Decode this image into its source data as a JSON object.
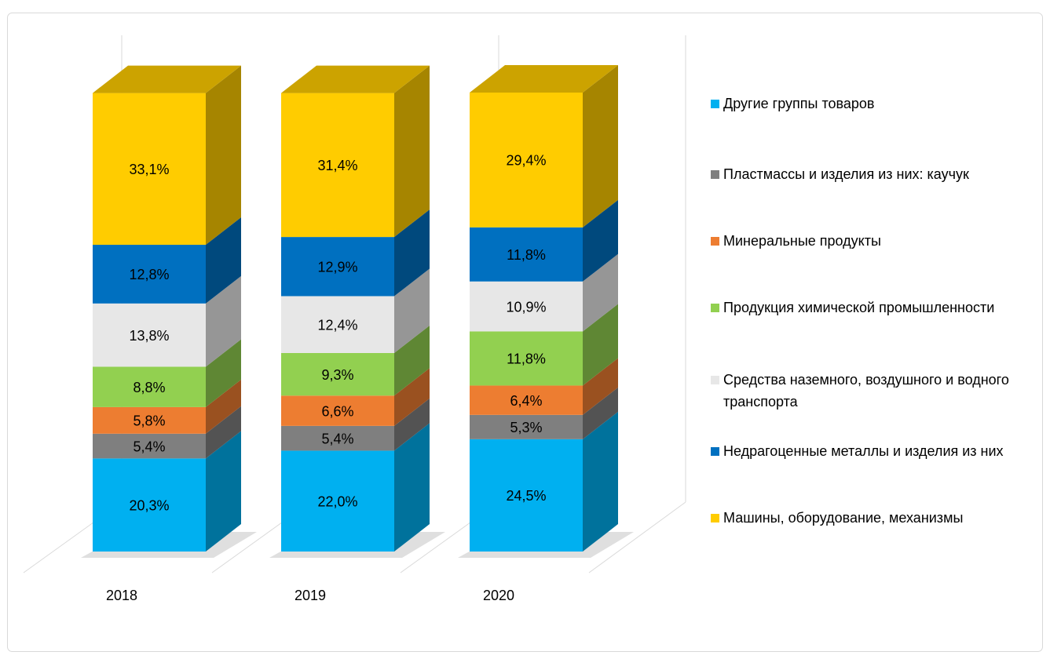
{
  "chart_data": {
    "type": "bar3d_stacked",
    "categories": [
      "2018",
      "2019",
      "2020"
    ],
    "series": [
      {
        "name": "Другие группы товаров",
        "color": "#00b0f0",
        "values": [
          20.3,
          22.0,
          24.5
        ],
        "value_labels": [
          "20,3%",
          "22,0%",
          "24,5%"
        ]
      },
      {
        "name": "Пластмассы и изделия из них: каучук",
        "color": "#7f7f7f",
        "values": [
          5.4,
          5.4,
          5.3
        ],
        "value_labels": [
          "5,4%",
          "5,4%",
          "5,3%"
        ]
      },
      {
        "name": "Минеральные продукты",
        "color": "#ed7d31",
        "values": [
          5.8,
          6.6,
          6.4
        ],
        "value_labels": [
          "5,8%",
          "6,6%",
          "6,4%"
        ]
      },
      {
        "name": "Продукция химической промышленности",
        "color": "#92d050",
        "values": [
          8.8,
          9.3,
          11.8
        ],
        "value_labels": [
          "8,8%",
          "9,3%",
          "11,8%"
        ]
      },
      {
        "name": "Средства наземного, воздушного и водного транспорта",
        "color": "#e7e7e7",
        "values": [
          13.8,
          12.4,
          10.9
        ],
        "value_labels": [
          "13,8%",
          "12,4%",
          "10,9%"
        ]
      },
      {
        "name": "Недрагоценные металлы и изделия из них",
        "color": "#0070c0",
        "values": [
          12.8,
          12.9,
          11.8
        ],
        "value_labels": [
          "12,8%",
          "12,9%",
          "11,8%"
        ]
      },
      {
        "name": "Машины, оборудование, механизмы",
        "color": "#ffcc00",
        "values": [
          33.1,
          31.4,
          29.4
        ],
        "value_labels": [
          "33,1%",
          "31,4%",
          "29,4%"
        ]
      }
    ],
    "legend": "right"
  }
}
